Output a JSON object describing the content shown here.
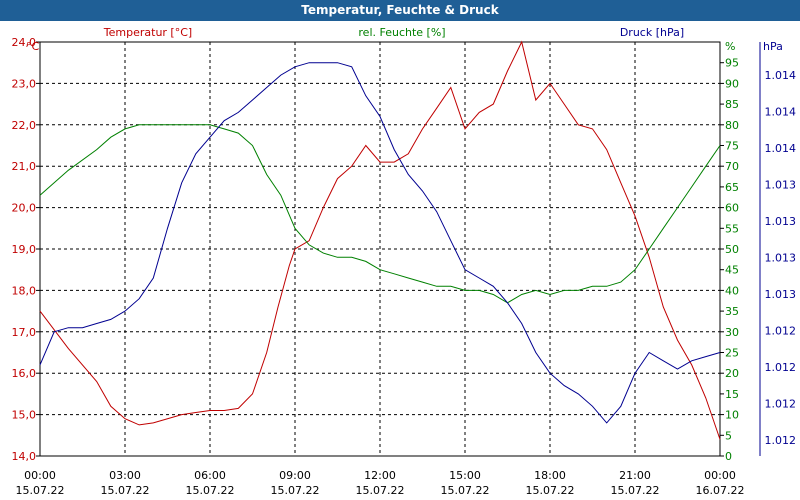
{
  "title": "Temperatur, Feuchte & Druck",
  "chart_data": {
    "type": "line",
    "title": "Temperatur, Feuchte & Druck",
    "x_tick_times": [
      "00:00",
      "03:00",
      "06:00",
      "09:00",
      "12:00",
      "15:00",
      "18:00",
      "21:00",
      "00:00"
    ],
    "x_tick_dates": [
      "15.07.22",
      "15.07.22",
      "15.07.22",
      "15.07.22",
      "15.07.22",
      "15.07.22",
      "15.07.22",
      "15.07.22",
      "16.07.22"
    ],
    "x_range_hours": [
      0,
      24
    ],
    "axes": {
      "temp": {
        "unit": "°C",
        "ylim": [
          14.0,
          24.0
        ],
        "ticks": [
          "14,0",
          "15,0",
          "16,0",
          "17,0",
          "18,0",
          "19,0",
          "20,0",
          "21,0",
          "22,0",
          "23,0",
          "24,0"
        ]
      },
      "hum": {
        "unit": "%",
        "ylim": [
          0,
          100
        ],
        "ticks": [
          "0",
          "5",
          "10",
          "15",
          "20",
          "25",
          "30",
          "35",
          "40",
          "45",
          "50",
          "55",
          "60",
          "65",
          "70",
          "75",
          "80",
          "85",
          "90",
          "95"
        ]
      },
      "press": {
        "unit": "hPa",
        "ticks": [
          "1.012",
          "1.012",
          "1.012",
          "1.012",
          "1.013",
          "1.013",
          "1.013",
          "1.013",
          "1.014",
          "1.014",
          "1.014"
        ]
      }
    },
    "series": [
      {
        "name": "Temperatur [°C]",
        "axis": "temp",
        "color": "#c00000",
        "points": [
          [
            0,
            17.5
          ],
          [
            1,
            16.6
          ],
          [
            2,
            15.8
          ],
          [
            2.5,
            15.2
          ],
          [
            3,
            14.9
          ],
          [
            3.5,
            14.75
          ],
          [
            4,
            14.8
          ],
          [
            5,
            15.0
          ],
          [
            5.5,
            15.05
          ],
          [
            6,
            15.1
          ],
          [
            6.5,
            15.1
          ],
          [
            7,
            15.15
          ],
          [
            7.5,
            15.5
          ],
          [
            8,
            16.5
          ],
          [
            8.4,
            17.6
          ],
          [
            8.8,
            18.6
          ],
          [
            9,
            19.0
          ],
          [
            9.5,
            19.2
          ],
          [
            10,
            20.0
          ],
          [
            10.5,
            20.7
          ],
          [
            11,
            21.0
          ],
          [
            11.5,
            21.5
          ],
          [
            12,
            21.1
          ],
          [
            12.5,
            21.1
          ],
          [
            13,
            21.3
          ],
          [
            13.5,
            21.9
          ],
          [
            14,
            22.4
          ],
          [
            14.5,
            22.9
          ],
          [
            15,
            21.9
          ],
          [
            15.5,
            22.3
          ],
          [
            16,
            22.5
          ],
          [
            16.5,
            23.3
          ],
          [
            17,
            24.0
          ],
          [
            17.5,
            22.6
          ],
          [
            18,
            23.0
          ],
          [
            18.5,
            22.5
          ],
          [
            19,
            22.0
          ],
          [
            19.5,
            21.9
          ],
          [
            20,
            21.4
          ],
          [
            20.5,
            20.6
          ],
          [
            21,
            19.8
          ],
          [
            21.5,
            18.8
          ],
          [
            22,
            17.6
          ],
          [
            22.5,
            16.8
          ],
          [
            23,
            16.2
          ],
          [
            23.5,
            15.4
          ],
          [
            24,
            14.4
          ]
        ]
      },
      {
        "name": "rel. Feuchte [%]",
        "axis": "hum",
        "color": "#008000",
        "points": [
          [
            0,
            63
          ],
          [
            1,
            69
          ],
          [
            2,
            74
          ],
          [
            2.5,
            77
          ],
          [
            3,
            79
          ],
          [
            3.5,
            80
          ],
          [
            4,
            80
          ],
          [
            5,
            80
          ],
          [
            5.5,
            80
          ],
          [
            6,
            80
          ],
          [
            6.5,
            79
          ],
          [
            7,
            78
          ],
          [
            7.5,
            75
          ],
          [
            8,
            68
          ],
          [
            8.5,
            63
          ],
          [
            9,
            55
          ],
          [
            9.5,
            51
          ],
          [
            10,
            49
          ],
          [
            10.5,
            48
          ],
          [
            11,
            48
          ],
          [
            11.5,
            47
          ],
          [
            12,
            45
          ],
          [
            12.5,
            44
          ],
          [
            13,
            43
          ],
          [
            13.5,
            42
          ],
          [
            14,
            41
          ],
          [
            14.5,
            41
          ],
          [
            15,
            40
          ],
          [
            15.5,
            40
          ],
          [
            16,
            39
          ],
          [
            16.5,
            37
          ],
          [
            17,
            39
          ],
          [
            17.5,
            40
          ],
          [
            18,
            39
          ],
          [
            18.5,
            40
          ],
          [
            19,
            40
          ],
          [
            19.5,
            41
          ],
          [
            20,
            41
          ],
          [
            20.5,
            42
          ],
          [
            21,
            45
          ],
          [
            21.5,
            50
          ],
          [
            22,
            55
          ],
          [
            22.5,
            60
          ],
          [
            23,
            65
          ],
          [
            23.5,
            70
          ],
          [
            24,
            75
          ]
        ]
      },
      {
        "name": "Druck [hPa]",
        "axis": "press",
        "color": "#000090",
        "points": [
          [
            0,
            22
          ],
          [
            0.5,
            30
          ],
          [
            1,
            31
          ],
          [
            1.5,
            31
          ],
          [
            2,
            32
          ],
          [
            2.5,
            33
          ],
          [
            3,
            35
          ],
          [
            3.5,
            38
          ],
          [
            4,
            43
          ],
          [
            4.5,
            55
          ],
          [
            5,
            66
          ],
          [
            5.5,
            73
          ],
          [
            6,
            77
          ],
          [
            6.5,
            81
          ],
          [
            7,
            83
          ],
          [
            7.5,
            86
          ],
          [
            8,
            89
          ],
          [
            8.5,
            92
          ],
          [
            9,
            94
          ],
          [
            9.5,
            95
          ],
          [
            10,
            95
          ],
          [
            10.5,
            95
          ],
          [
            11,
            94
          ],
          [
            11.5,
            87
          ],
          [
            12,
            82
          ],
          [
            12.5,
            74
          ],
          [
            13,
            68
          ],
          [
            13.5,
            64
          ],
          [
            14,
            59
          ],
          [
            14.5,
            52
          ],
          [
            15,
            45
          ],
          [
            15.5,
            43
          ],
          [
            16,
            41
          ],
          [
            16.5,
            37
          ],
          [
            17,
            32
          ],
          [
            17.5,
            25
          ],
          [
            18,
            20
          ],
          [
            18.5,
            17
          ],
          [
            19,
            15
          ],
          [
            19.5,
            12
          ],
          [
            20,
            8
          ],
          [
            20.5,
            12
          ],
          [
            21,
            20
          ],
          [
            21.5,
            25
          ],
          [
            22,
            23
          ],
          [
            22.5,
            21
          ],
          [
            23,
            23
          ],
          [
            23.5,
            24
          ],
          [
            24,
            25
          ]
        ]
      }
    ]
  }
}
